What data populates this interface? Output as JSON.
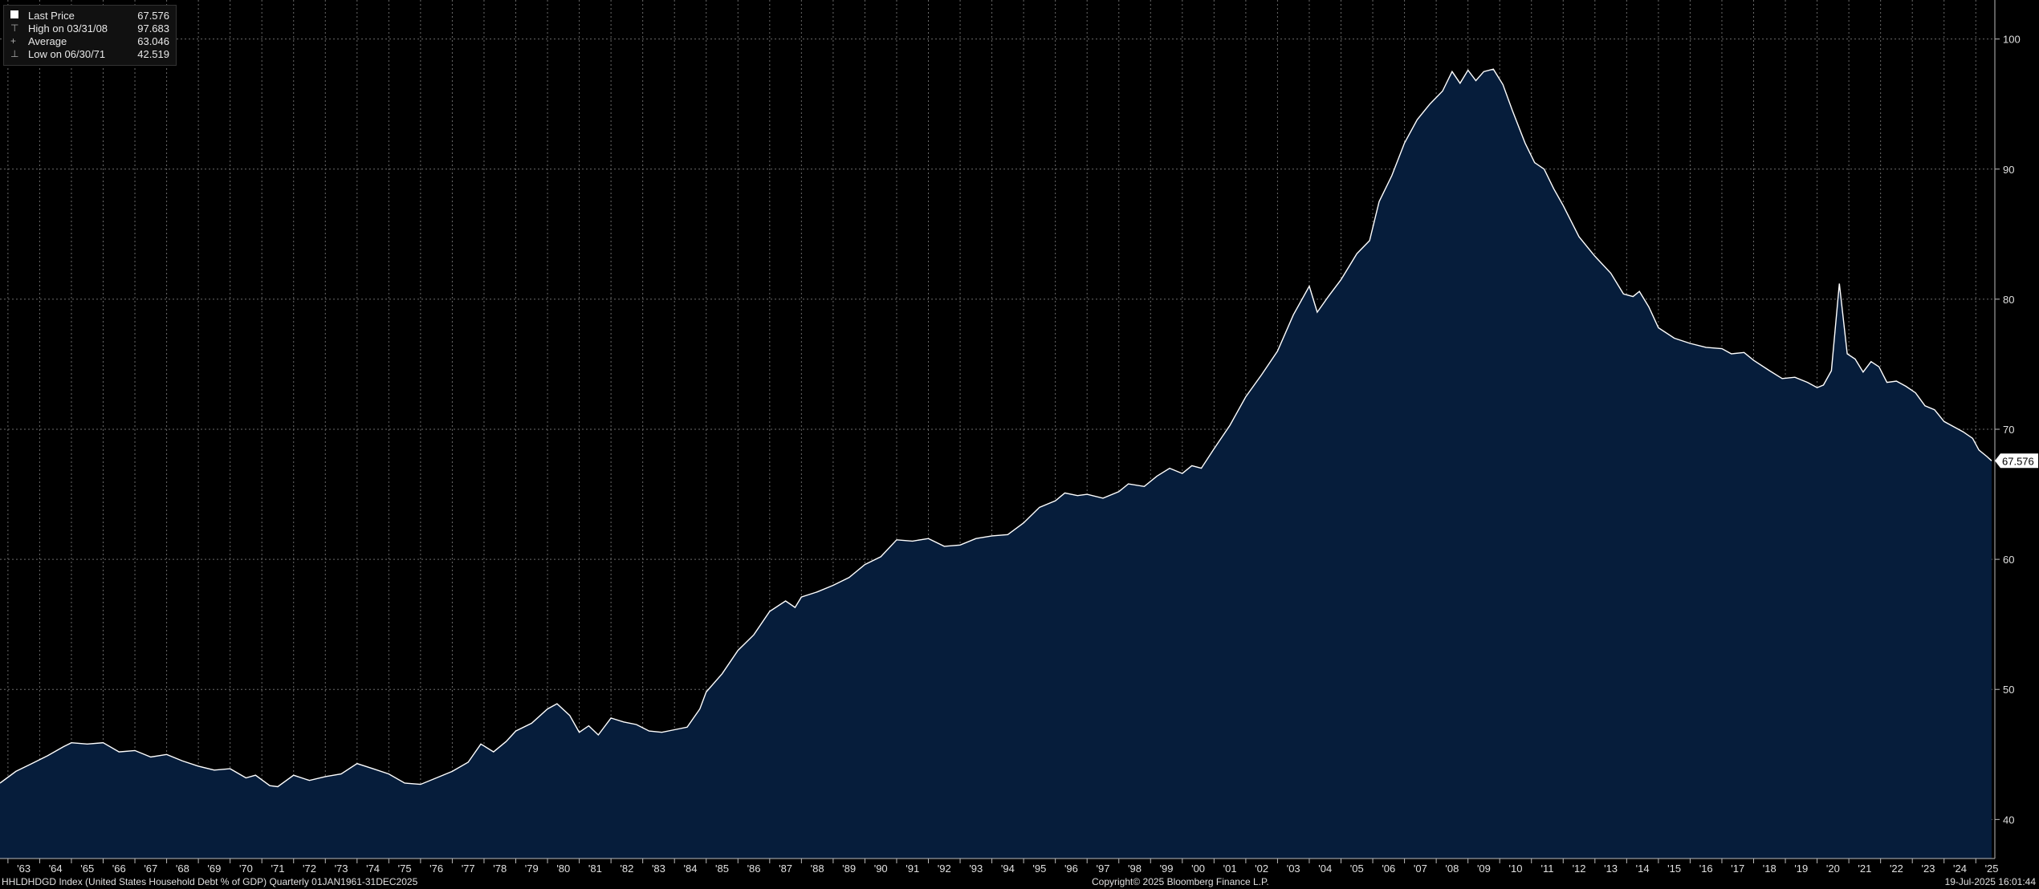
{
  "legend": {
    "items": [
      {
        "icon": "square",
        "label": "Last Price",
        "value": "67.576"
      },
      {
        "icon": "high-marker",
        "label": "High on 03/31/08",
        "value": "97.683"
      },
      {
        "icon": "average-marker",
        "label": "Average",
        "value": "63.046"
      },
      {
        "icon": "low-marker",
        "label": "Low on 06/30/71",
        "value": "42.519"
      }
    ]
  },
  "footer": {
    "left": "HHLDHDGD Index (United States Household Debt % of GDP)  Quarterly 01JAN1961-31DEC2025",
    "center": "Copyright© 2025 Bloomberg Finance L.P.",
    "right": "19-Jul-2025 16:01:44"
  },
  "colors": {
    "area": "#061d3b",
    "line": "#ffffff",
    "grid": "#6a6a6a",
    "background": "#000000"
  },
  "chart_data": {
    "type": "area",
    "title": "",
    "xlabel": "",
    "ylabel": "",
    "x_range": [
      1962.75,
      2025.6
    ],
    "ylim": [
      37,
      103
    ],
    "y_ticks": [
      40,
      50,
      60,
      70,
      80,
      90,
      100
    ],
    "x_tick_labels": [
      "'63",
      "'64",
      "'65",
      "'66",
      "'67",
      "'68",
      "'69",
      "'70",
      "'71",
      "'72",
      "'73",
      "'74",
      "'75",
      "'76",
      "'77",
      "'78",
      "'79",
      "'80",
      "'81",
      "'82",
      "'83",
      "'84",
      "'85",
      "'86",
      "'87",
      "'88",
      "'89",
      "'90",
      "'91",
      "'92",
      "'93",
      "'94",
      "'95",
      "'96",
      "'97",
      "'98",
      "'99",
      "'00",
      "'01",
      "'02",
      "'03",
      "'04",
      "'05",
      "'06",
      "'07",
      "'08",
      "'09",
      "'10",
      "'11",
      "'12",
      "'13",
      "'14",
      "'15",
      "'16",
      "'17",
      "'18",
      "'19",
      "'20",
      "'21",
      "'22",
      "'23",
      "'24",
      "'25"
    ],
    "grid": true,
    "last_value_label": "67.576",
    "series": [
      {
        "values": [
          {
            "x": 1962.75,
            "y": 42.8
          },
          {
            "x": 1963.25,
            "y": 43.7
          },
          {
            "x": 1963.75,
            "y": 44.3
          },
          {
            "x": 1964.25,
            "y": 44.9
          },
          {
            "x": 1964.75,
            "y": 45.6
          },
          {
            "x": 1965.0,
            "y": 45.9
          },
          {
            "x": 1965.5,
            "y": 45.8
          },
          {
            "x": 1966.0,
            "y": 45.9
          },
          {
            "x": 1966.5,
            "y": 45.2
          },
          {
            "x": 1967.0,
            "y": 45.3
          },
          {
            "x": 1967.5,
            "y": 44.8
          },
          {
            "x": 1968.0,
            "y": 45.0
          },
          {
            "x": 1968.5,
            "y": 44.5
          },
          {
            "x": 1969.0,
            "y": 44.1
          },
          {
            "x": 1969.5,
            "y": 43.8
          },
          {
            "x": 1970.0,
            "y": 43.9
          },
          {
            "x": 1970.5,
            "y": 43.2
          },
          {
            "x": 1970.8,
            "y": 43.4
          },
          {
            "x": 1971.25,
            "y": 42.6
          },
          {
            "x": 1971.5,
            "y": 42.519
          },
          {
            "x": 1972.0,
            "y": 43.4
          },
          {
            "x": 1972.5,
            "y": 43.0
          },
          {
            "x": 1973.0,
            "y": 43.3
          },
          {
            "x": 1973.5,
            "y": 43.5
          },
          {
            "x": 1974.0,
            "y": 44.3
          },
          {
            "x": 1974.5,
            "y": 43.9
          },
          {
            "x": 1975.0,
            "y": 43.5
          },
          {
            "x": 1975.5,
            "y": 42.8
          },
          {
            "x": 1976.0,
            "y": 42.7
          },
          {
            "x": 1976.5,
            "y": 43.2
          },
          {
            "x": 1977.0,
            "y": 43.7
          },
          {
            "x": 1977.5,
            "y": 44.4
          },
          {
            "x": 1977.9,
            "y": 45.8
          },
          {
            "x": 1978.3,
            "y": 45.2
          },
          {
            "x": 1978.7,
            "y": 46.0
          },
          {
            "x": 1979.0,
            "y": 46.8
          },
          {
            "x": 1979.5,
            "y": 47.4
          },
          {
            "x": 1980.0,
            "y": 48.5
          },
          {
            "x": 1980.3,
            "y": 48.9
          },
          {
            "x": 1980.7,
            "y": 48.0
          },
          {
            "x": 1981.0,
            "y": 46.7
          },
          {
            "x": 1981.3,
            "y": 47.2
          },
          {
            "x": 1981.6,
            "y": 46.5
          },
          {
            "x": 1982.0,
            "y": 47.8
          },
          {
            "x": 1982.4,
            "y": 47.5
          },
          {
            "x": 1982.8,
            "y": 47.3
          },
          {
            "x": 1983.2,
            "y": 46.8
          },
          {
            "x": 1983.6,
            "y": 46.7
          },
          {
            "x": 1984.0,
            "y": 46.9
          },
          {
            "x": 1984.4,
            "y": 47.1
          },
          {
            "x": 1984.8,
            "y": 48.5
          },
          {
            "x": 1985.0,
            "y": 49.8
          },
          {
            "x": 1985.5,
            "y": 51.2
          },
          {
            "x": 1986.0,
            "y": 53.0
          },
          {
            "x": 1986.5,
            "y": 54.2
          },
          {
            "x": 1987.0,
            "y": 56.0
          },
          {
            "x": 1987.5,
            "y": 56.8
          },
          {
            "x": 1987.8,
            "y": 56.3
          },
          {
            "x": 1988.0,
            "y": 57.1
          },
          {
            "x": 1988.5,
            "y": 57.5
          },
          {
            "x": 1989.0,
            "y": 58.0
          },
          {
            "x": 1989.5,
            "y": 58.6
          },
          {
            "x": 1990.0,
            "y": 59.6
          },
          {
            "x": 1990.5,
            "y": 60.2
          },
          {
            "x": 1991.0,
            "y": 61.5
          },
          {
            "x": 1991.5,
            "y": 61.4
          },
          {
            "x": 1992.0,
            "y": 61.6
          },
          {
            "x": 1992.5,
            "y": 61.0
          },
          {
            "x": 1993.0,
            "y": 61.1
          },
          {
            "x": 1993.5,
            "y": 61.6
          },
          {
            "x": 1994.0,
            "y": 61.8
          },
          {
            "x": 1994.5,
            "y": 61.9
          },
          {
            "x": 1995.0,
            "y": 62.8
          },
          {
            "x": 1995.5,
            "y": 64.0
          },
          {
            "x": 1996.0,
            "y": 64.5
          },
          {
            "x": 1996.3,
            "y": 65.1
          },
          {
            "x": 1996.7,
            "y": 64.9
          },
          {
            "x": 1997.0,
            "y": 65.0
          },
          {
            "x": 1997.5,
            "y": 64.7
          },
          {
            "x": 1998.0,
            "y": 65.2
          },
          {
            "x": 1998.3,
            "y": 65.8
          },
          {
            "x": 1998.8,
            "y": 65.6
          },
          {
            "x": 1999.2,
            "y": 66.4
          },
          {
            "x": 1999.6,
            "y": 67.0
          },
          {
            "x": 2000.0,
            "y": 66.6
          },
          {
            "x": 2000.3,
            "y": 67.2
          },
          {
            "x": 2000.6,
            "y": 67.0
          },
          {
            "x": 2001.0,
            "y": 68.5
          },
          {
            "x": 2001.5,
            "y": 70.3
          },
          {
            "x": 2002.0,
            "y": 72.5
          },
          {
            "x": 2002.5,
            "y": 74.2
          },
          {
            "x": 2003.0,
            "y": 76.0
          },
          {
            "x": 2003.5,
            "y": 78.8
          },
          {
            "x": 2004.0,
            "y": 81.0
          },
          {
            "x": 2004.25,
            "y": 79.0
          },
          {
            "x": 2004.6,
            "y": 80.2
          },
          {
            "x": 2005.0,
            "y": 81.5
          },
          {
            "x": 2005.5,
            "y": 83.5
          },
          {
            "x": 2005.9,
            "y": 84.5
          },
          {
            "x": 2006.2,
            "y": 87.5
          },
          {
            "x": 2006.6,
            "y": 89.5
          },
          {
            "x": 2007.0,
            "y": 92.0
          },
          {
            "x": 2007.4,
            "y": 93.8
          },
          {
            "x": 2007.8,
            "y": 95.0
          },
          {
            "x": 2008.2,
            "y": 96.0
          },
          {
            "x": 2008.5,
            "y": 97.5
          },
          {
            "x": 2008.75,
            "y": 96.6
          },
          {
            "x": 2009.0,
            "y": 97.6
          },
          {
            "x": 2009.25,
            "y": 96.8
          },
          {
            "x": 2009.5,
            "y": 97.5
          },
          {
            "x": 2009.8,
            "y": 97.683
          },
          {
            "x": 2010.1,
            "y": 96.5
          },
          {
            "x": 2010.4,
            "y": 94.5
          },
          {
            "x": 2010.8,
            "y": 92.0
          },
          {
            "x": 2011.1,
            "y": 90.5
          },
          {
            "x": 2011.4,
            "y": 90.0
          },
          {
            "x": 2011.7,
            "y": 88.5
          },
          {
            "x": 2012.0,
            "y": 87.2
          },
          {
            "x": 2012.5,
            "y": 84.8
          },
          {
            "x": 2013.0,
            "y": 83.3
          },
          {
            "x": 2013.5,
            "y": 82.0
          },
          {
            "x": 2013.9,
            "y": 80.4
          },
          {
            "x": 2014.2,
            "y": 80.2
          },
          {
            "x": 2014.4,
            "y": 80.6
          },
          {
            "x": 2014.7,
            "y": 79.4
          },
          {
            "x": 2015.0,
            "y": 77.8
          },
          {
            "x": 2015.5,
            "y": 77.0
          },
          {
            "x": 2016.0,
            "y": 76.6
          },
          {
            "x": 2016.5,
            "y": 76.3
          },
          {
            "x": 2017.0,
            "y": 76.2
          },
          {
            "x": 2017.3,
            "y": 75.8
          },
          {
            "x": 2017.7,
            "y": 75.9
          },
          {
            "x": 2018.0,
            "y": 75.3
          },
          {
            "x": 2018.5,
            "y": 74.5
          },
          {
            "x": 2018.9,
            "y": 73.9
          },
          {
            "x": 2019.3,
            "y": 74.0
          },
          {
            "x": 2019.7,
            "y": 73.6
          },
          {
            "x": 2020.0,
            "y": 73.2
          },
          {
            "x": 2020.2,
            "y": 73.4
          },
          {
            "x": 2020.45,
            "y": 74.5
          },
          {
            "x": 2020.7,
            "y": 81.2
          },
          {
            "x": 2020.95,
            "y": 75.8
          },
          {
            "x": 2021.2,
            "y": 75.4
          },
          {
            "x": 2021.45,
            "y": 74.4
          },
          {
            "x": 2021.7,
            "y": 75.2
          },
          {
            "x": 2021.95,
            "y": 74.8
          },
          {
            "x": 2022.2,
            "y": 73.6
          },
          {
            "x": 2022.5,
            "y": 73.7
          },
          {
            "x": 2022.8,
            "y": 73.3
          },
          {
            "x": 2023.1,
            "y": 72.8
          },
          {
            "x": 2023.4,
            "y": 71.8
          },
          {
            "x": 2023.7,
            "y": 71.5
          },
          {
            "x": 2024.0,
            "y": 70.6
          },
          {
            "x": 2024.3,
            "y": 70.2
          },
          {
            "x": 2024.6,
            "y": 69.8
          },
          {
            "x": 2024.9,
            "y": 69.3
          },
          {
            "x": 2025.1,
            "y": 68.4
          },
          {
            "x": 2025.35,
            "y": 67.9
          },
          {
            "x": 2025.5,
            "y": 67.576
          }
        ]
      }
    ]
  }
}
